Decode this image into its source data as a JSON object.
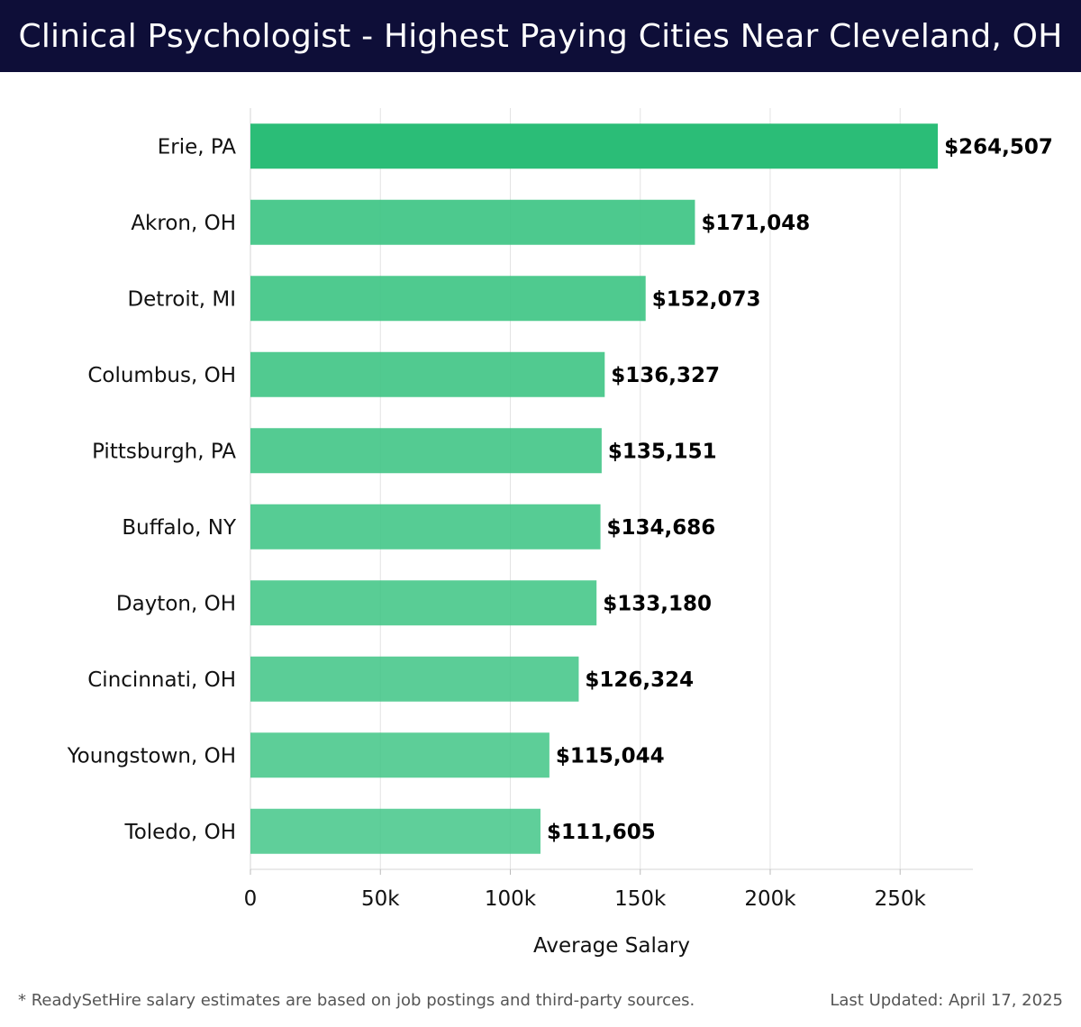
{
  "header": {
    "title": "Clinical Psychologist - Highest Paying Cities Near Cleveland, OH"
  },
  "chart_data": {
    "type": "bar",
    "orientation": "horizontal",
    "categories": [
      "Erie, PA",
      "Akron, OH",
      "Detroit, MI",
      "Columbus, OH",
      "Pittsburgh, PA",
      "Buffalo, NY",
      "Dayton, OH",
      "Cincinnati, OH",
      "Youngstown, OH",
      "Toledo, OH"
    ],
    "values": [
      264507,
      171048,
      152073,
      136327,
      135151,
      134686,
      133180,
      126324,
      115044,
      111605
    ],
    "value_labels": [
      "$264,507",
      "$171,048",
      "$152,073",
      "$136,327",
      "$135,151",
      "$134,686",
      "$133,180",
      "$126,324",
      "$115,044",
      "$111,605"
    ],
    "xlabel": "Average Salary",
    "ylabel": "",
    "xlim": [
      0,
      278000
    ],
    "xticks": [
      0,
      50000,
      100000,
      150000,
      200000,
      250000
    ],
    "xtick_labels": [
      "0",
      "50k",
      "100k",
      "150k",
      "200k",
      "250k"
    ],
    "grid": "vertical",
    "colors": {
      "top_bar": "#2bbd77",
      "bars": "#3fc585",
      "value_label": "#000000",
      "header_bg": "#0e0e38"
    }
  },
  "footer": {
    "note": "* ReadySetHire salary estimates are based on job postings and third-party sources.",
    "updated": "Last Updated: April 17, 2025"
  }
}
